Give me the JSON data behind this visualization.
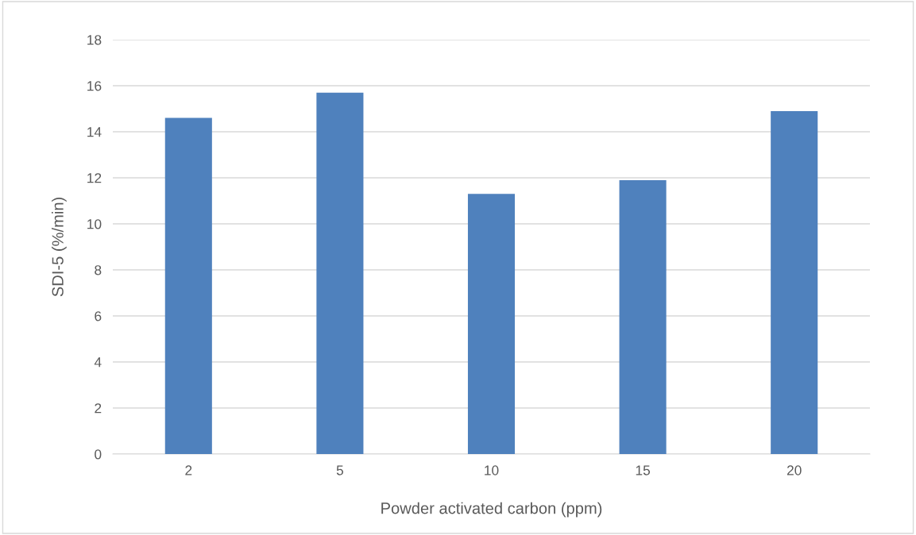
{
  "chart_data": {
    "type": "bar",
    "xlabel": "Powder activated carbon (ppm)",
    "ylabel": "SDI-5 (%/min)",
    "categories": [
      "2",
      "5",
      "10",
      "15",
      "20"
    ],
    "values": [
      14.6,
      15.7,
      11.3,
      11.9,
      14.9
    ],
    "color": "#4f81bd",
    "ylim": [
      0,
      18
    ],
    "yticks": [
      0,
      2,
      4,
      6,
      8,
      10,
      12,
      14,
      16,
      18
    ],
    "grid": "y"
  }
}
